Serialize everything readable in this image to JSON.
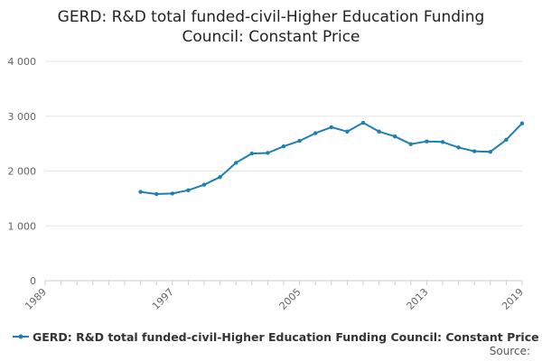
{
  "title_line1": "GERD: R&D total funded-civil-Higher Education Funding",
  "title_line2": "Council: Constant Price",
  "source_label": "Source:",
  "legend": {
    "label": "GERD: R&D total funded-civil-Higher Education Funding Council: Constant Price"
  },
  "colors": {
    "series": "#1f7fb4",
    "grid": "#e6e6e6",
    "axis_text": "#666666"
  },
  "chart_data": {
    "type": "line",
    "title": "GERD: R&D total funded-civil-Higher Education Funding Council: Constant Price",
    "xlabel": "",
    "ylabel": "",
    "xlim": [
      1989,
      2019
    ],
    "ylim": [
      0,
      4000
    ],
    "x_ticks": [
      1989,
      1997,
      2005,
      2013,
      2019
    ],
    "x_tick_labels": [
      "1989",
      "1997",
      "2005",
      "2013",
      "2019"
    ],
    "y_ticks": [
      0,
      1000,
      2000,
      3000,
      4000
    ],
    "y_tick_labels": [
      "0",
      "1 000",
      "2 000",
      "3 000",
      "4 000"
    ],
    "grid": true,
    "legend_position": "bottom-left",
    "series": [
      {
        "name": "GERD: R&D total funded-civil-Higher Education Funding Council: Constant Price",
        "x": [
          1995,
          1996,
          1997,
          1998,
          1999,
          2000,
          2001,
          2002,
          2003,
          2004,
          2005,
          2006,
          2007,
          2008,
          2009,
          2010,
          2011,
          2012,
          2013,
          2014,
          2015,
          2016,
          2017,
          2018,
          2019
        ],
        "y": [
          1620,
          1580,
          1590,
          1650,
          1750,
          1890,
          2150,
          2320,
          2330,
          2450,
          2550,
          2690,
          2800,
          2720,
          2880,
          2720,
          2630,
          2490,
          2540,
          2530,
          2430,
          2360,
          2350,
          2570,
          2870
        ]
      }
    ]
  }
}
